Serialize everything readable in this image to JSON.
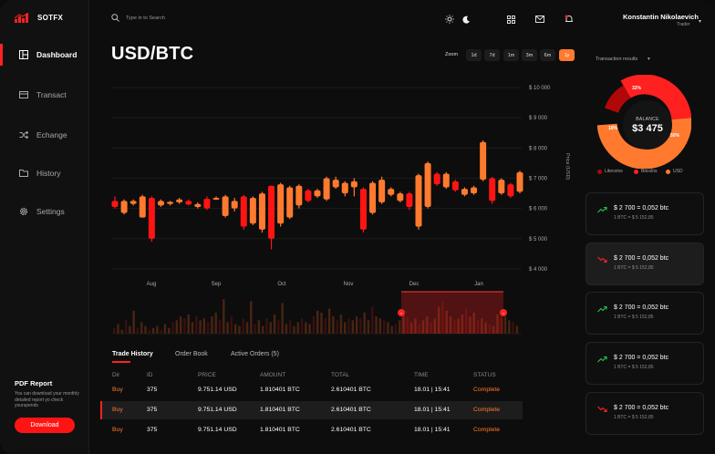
{
  "brand": {
    "name": "SOTFX"
  },
  "sidebar": {
    "items": [
      {
        "label": "Dashboard",
        "icon": "dashboard-icon"
      },
      {
        "label": "Transact",
        "icon": "card-icon"
      },
      {
        "label": "Echange",
        "icon": "shuffle-icon"
      },
      {
        "label": "History",
        "icon": "folder-icon"
      },
      {
        "label": "Settings",
        "icon": "gear-icon"
      }
    ],
    "pdf": {
      "title": "PDF Report",
      "description": "You can download your monthly detailed report yo check yourspends",
      "button": "Download"
    }
  },
  "topbar": {
    "search_placeholder": "Type in to Search",
    "icons": [
      "sun-icon",
      "moon-icon",
      "grid-icon",
      "mail-icon",
      "bell-icon"
    ],
    "user": {
      "name": "Konstantin Nikolaevich",
      "role": "Trader"
    }
  },
  "main": {
    "title": "USD/BTC",
    "zoom": {
      "label": "Zoom",
      "options": [
        "1d",
        "7d",
        "1m",
        "3m",
        "6m",
        "1y"
      ],
      "selected": "1y"
    }
  },
  "chart_data": {
    "type": "candlestick",
    "ylabel": "Price (USD)",
    "y_ticks": [
      "$ 10 000",
      "$ 9 000",
      "$ 8 000",
      "$ 7 000",
      "$ 6 000",
      "$ 5 000",
      "$ 4 000"
    ],
    "ylim": [
      4000,
      10000
    ],
    "x_ticks": [
      "Aug",
      "Sep",
      "Oct",
      "Nov",
      "Dec",
      "Jan"
    ],
    "colors": {
      "up": "#ff7a2e",
      "down": "#ff1414"
    },
    "candles": [
      {
        "o": 6250,
        "c": 6050,
        "h": 6400,
        "l": 6000
      },
      {
        "o": 5850,
        "c": 6250,
        "h": 6300,
        "l": 5800
      },
      {
        "o": 6150,
        "c": 6250,
        "h": 6300,
        "l": 6100
      },
      {
        "o": 5700,
        "c": 6400,
        "h": 6450,
        "l": 5700
      },
      {
        "o": 6350,
        "c": 5000,
        "h": 6400,
        "l": 4900
      },
      {
        "o": 6100,
        "c": 6250,
        "h": 6300,
        "l": 6050
      },
      {
        "o": 6150,
        "c": 6220,
        "h": 6250,
        "l": 6100
      },
      {
        "o": 6200,
        "c": 6300,
        "h": 6350,
        "l": 6150
      },
      {
        "o": 6250,
        "c": 6130,
        "h": 6300,
        "l": 6100
      },
      {
        "o": 6050,
        "c": 6150,
        "h": 6200,
        "l": 6000
      },
      {
        "o": 6320,
        "c": 6000,
        "h": 6400,
        "l": 5950
      },
      {
        "o": 6300,
        "c": 6350,
        "h": 6400,
        "l": 6280
      },
      {
        "o": 5750,
        "c": 6400,
        "h": 6450,
        "l": 5700
      },
      {
        "o": 6000,
        "c": 6250,
        "h": 6350,
        "l": 5900
      },
      {
        "o": 6400,
        "c": 5400,
        "h": 6450,
        "l": 5300
      },
      {
        "o": 5500,
        "c": 6350,
        "h": 6400,
        "l": 5450
      },
      {
        "o": 5300,
        "c": 6500,
        "h": 6550,
        "l": 5200
      },
      {
        "o": 6750,
        "c": 5000,
        "h": 6750,
        "l": 4650
      },
      {
        "o": 5500,
        "c": 6800,
        "h": 6850,
        "l": 5400
      },
      {
        "o": 5700,
        "c": 6700,
        "h": 6750,
        "l": 5650
      },
      {
        "o": 6100,
        "c": 6750,
        "h": 6800,
        "l": 6000
      },
      {
        "o": 6600,
        "c": 6250,
        "h": 6650,
        "l": 6200
      },
      {
        "o": 6400,
        "c": 6600,
        "h": 6650,
        "l": 6350
      },
      {
        "o": 6300,
        "c": 7000,
        "h": 7050,
        "l": 6250
      },
      {
        "o": 6700,
        "c": 6950,
        "h": 7050,
        "l": 6650
      },
      {
        "o": 6500,
        "c": 6850,
        "h": 6900,
        "l": 6400
      },
      {
        "o": 6700,
        "c": 6900,
        "h": 7000,
        "l": 6400
      },
      {
        "o": 6650,
        "c": 5300,
        "h": 6700,
        "l": 5200
      },
      {
        "o": 5850,
        "c": 6850,
        "h": 6900,
        "l": 5800
      },
      {
        "o": 6200,
        "c": 6950,
        "h": 7050,
        "l": 6150
      },
      {
        "o": 6450,
        "c": 6650,
        "h": 6700,
        "l": 6400
      },
      {
        "o": 6250,
        "c": 6500,
        "h": 6550,
        "l": 6200
      },
      {
        "o": 6500,
        "c": 6050,
        "h": 6550,
        "l": 5950
      },
      {
        "o": 5400,
        "c": 7100,
        "h": 7150,
        "l": 5300
      },
      {
        "o": 6050,
        "c": 7500,
        "h": 7550,
        "l": 6000
      },
      {
        "o": 7150,
        "c": 6800,
        "h": 7200,
        "l": 6750
      },
      {
        "o": 6700,
        "c": 7150,
        "h": 7200,
        "l": 6650
      },
      {
        "o": 6900,
        "c": 6600,
        "h": 6950,
        "l": 6550
      },
      {
        "o": 6450,
        "c": 6650,
        "h": 6700,
        "l": 6400
      },
      {
        "o": 6500,
        "c": 6700,
        "h": 6750,
        "l": 6450
      },
      {
        "o": 6950,
        "c": 8200,
        "h": 8250,
        "l": 6900
      },
      {
        "o": 7000,
        "c": 6250,
        "h": 7050,
        "l": 6150
      },
      {
        "o": 6500,
        "c": 6950,
        "h": 7000,
        "l": 6450
      },
      {
        "o": 6800,
        "c": 6400,
        "h": 6850,
        "l": 6350
      },
      {
        "o": 6550,
        "c": 7200,
        "h": 7250,
        "l": 6500
      }
    ],
    "volume": [
      0.15,
      0.25,
      0.1,
      0.35,
      0.2,
      0.6,
      0.15,
      0.3,
      0.2,
      0.1,
      0.15,
      0.2,
      0.1,
      0.25,
      0.15,
      0.3,
      0.35,
      0.45,
      0.4,
      0.5,
      0.3,
      0.45,
      0.35,
      0.4,
      0.3,
      0.45,
      0.55,
      0.35,
      0.9,
      0.3,
      0.45,
      0.25,
      0.2,
      0.4,
      0.3,
      0.85,
      0.25,
      0.35,
      0.2,
      0.4,
      0.3,
      0.5,
      0.35,
      0.8,
      0.25,
      0.35,
      0.2,
      0.3,
      0.4,
      0.3,
      0.25,
      0.45,
      0.6,
      0.55,
      0.4,
      0.65,
      0.45,
      0.35,
      0.5,
      0.3,
      0.4,
      0.35,
      0.45,
      0.4,
      0.55,
      0.35,
      0.7,
      0.45,
      0.4,
      0.35,
      0.3,
      0.2,
      0.25,
      0.35,
      0.6,
      0.45,
      0.3,
      0.4,
      0.25,
      0.35,
      0.45,
      0.3,
      0.4,
      0.7,
      0.85,
      0.6,
      0.45,
      0.35,
      0.4,
      0.5,
      0.65,
      0.45,
      0.55,
      0.35,
      0.4,
      0.3,
      0.25,
      0.2,
      0.5,
      0.4,
      0.45,
      0.35,
      0.3,
      0.2
    ]
  },
  "trade_history": {
    "tabs": [
      "Trade History",
      "Order Book",
      "Active Orders (5)"
    ],
    "columns": [
      "Dir",
      "ID",
      "PRICE",
      "AMOUNT",
      "TOTAL",
      "TIME",
      "STATUS"
    ],
    "rows": [
      [
        "Buy",
        "375",
        "9.751.14 USD",
        "1.810401 BTC",
        "2.610401 BTC",
        "18.01 | 15:41",
        "Complete"
      ],
      [
        "Buy",
        "375",
        "9.751.14 USD",
        "1.810401 BTC",
        "2.610401 BTC",
        "18.01 | 15:41",
        "Complete"
      ],
      [
        "Buy",
        "375",
        "9.751.14 USD",
        "1.810401 BTC",
        "2.610401 BTC",
        "18.01 | 15:41",
        "Complete"
      ]
    ]
  },
  "transactions": {
    "label": "Transaction results",
    "balance_label": "BALANCE",
    "balance": "$3 475",
    "donut": [
      {
        "name": "Litecoins",
        "value": 18,
        "label": "18%",
        "color": "#b00808"
      },
      {
        "name": "Bitcoins",
        "value": 32,
        "label": "32%",
        "color": "#ff2020"
      },
      {
        "name": "USD",
        "value": 50,
        "label": "50%",
        "color": "#ff7a2e"
      }
    ],
    "cards": [
      {
        "amount": "$ 2 700 = 0,052 btc",
        "rate": "1 BTC = $ 5 152,85",
        "trend": "up"
      },
      {
        "amount": "$ 2 700 = 0,052 btc",
        "rate": "1 BTC = $ 5 152,85",
        "trend": "down"
      },
      {
        "amount": "$ 2 700 = 0,052 btc",
        "rate": "1 BTC = $ 5 152,85",
        "trend": "up"
      },
      {
        "amount": "$ 2 700 = 0,052 btc",
        "rate": "1 BTC = $ 5 152,85",
        "trend": "up"
      },
      {
        "amount": "$ 2 700 = 0,052 btc",
        "rate": "1 BTC = $ 5 152,85",
        "trend": "down"
      }
    ]
  }
}
